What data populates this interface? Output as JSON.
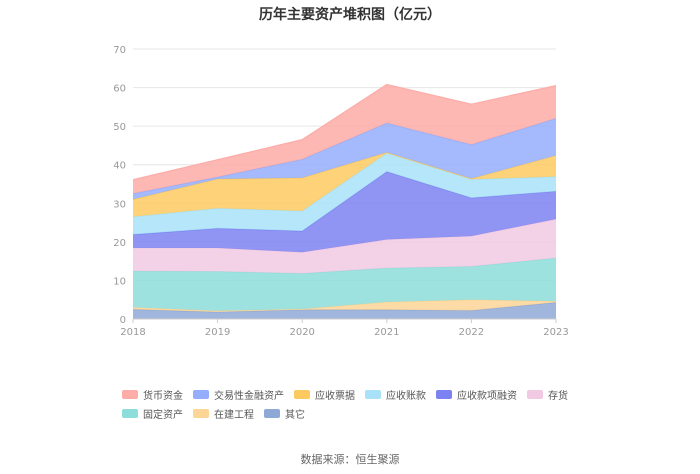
{
  "chart_data": {
    "type": "area",
    "stacked": true,
    "title": "历年主要资产堆积图（亿元）",
    "categories": [
      "2018",
      "2019",
      "2020",
      "2021",
      "2022",
      "2023"
    ],
    "yticks": [
      0,
      10,
      20,
      30,
      40,
      50,
      60,
      70
    ],
    "ylim": [
      0,
      70
    ],
    "grid": true,
    "legend_position": "bottom",
    "series": [
      {
        "name": "其它",
        "color": "#8fa9d6",
        "values": [
          2.5,
          1.8,
          2.4,
          2.4,
          2.2,
          4.3
        ]
      },
      {
        "name": "在建工程",
        "color": "#fdd596",
        "values": [
          0.5,
          0.3,
          0.2,
          2.0,
          2.8,
          0.3
        ]
      },
      {
        "name": "固定资产",
        "color": "#8dddda",
        "values": [
          9.4,
          10.2,
          9.2,
          8.8,
          8.6,
          11.2
        ]
      },
      {
        "name": "存货",
        "color": "#f1c9e2",
        "values": [
          6.0,
          6.1,
          5.5,
          7.4,
          7.9,
          10.1
        ]
      },
      {
        "name": "应收款项融资",
        "color": "#7c82f1",
        "values": [
          3.5,
          5.1,
          5.5,
          17.6,
          9.9,
          7.2
        ]
      },
      {
        "name": "应收账款",
        "color": "#a9e2f8",
        "values": [
          4.6,
          5.2,
          5.2,
          4.8,
          4.8,
          3.8
        ]
      },
      {
        "name": "应收票据",
        "color": "#fdca61",
        "values": [
          4.5,
          7.6,
          8.6,
          0.2,
          0.2,
          5.5
        ]
      },
      {
        "name": "交易性金融资产",
        "color": "#94aefc",
        "values": [
          1.5,
          0.5,
          4.8,
          7.6,
          8.8,
          9.6
        ]
      },
      {
        "name": "货币资金",
        "color": "#fdaca7",
        "values": [
          3.6,
          4.5,
          5.1,
          10.0,
          10.5,
          8.5
        ]
      }
    ]
  },
  "legend_order": [
    "货币资金",
    "交易性金融资产",
    "应收票据",
    "应收账款",
    "应收款项融资",
    "存货",
    "固定资产",
    "在建工程",
    "其它"
  ],
  "source_text": "数据来源：恒生聚源"
}
